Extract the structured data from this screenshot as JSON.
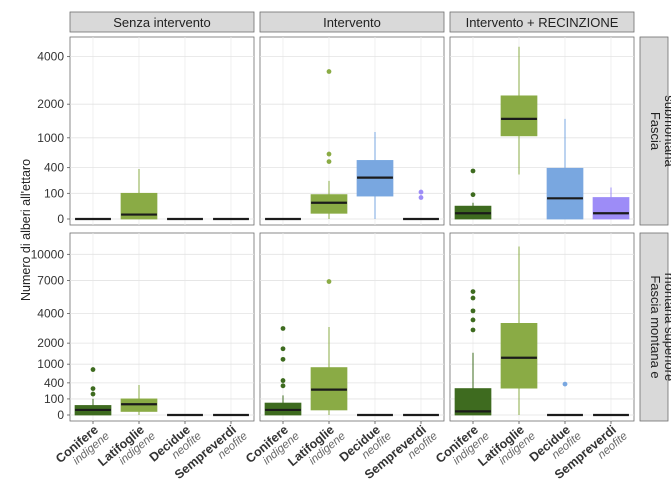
{
  "chart_data": {
    "type": "boxplot",
    "ylabel": "Numero di alberi all'ettaro",
    "columns": [
      "Senza intervento",
      "Intervento",
      "Intervento + RECINZIONE"
    ],
    "rows": [
      {
        "label": "Fascia submontana",
        "label_lines": [
          "Fascia",
          "submontana"
        ]
      },
      {
        "label": "Fascia montana e montana superiore",
        "label_lines": [
          "Fascia montana e",
          "montana superiore"
        ]
      }
    ],
    "categories": [
      {
        "main": "Conifere",
        "sub": "indigene",
        "color": "#3e6b1f"
      },
      {
        "main": "Latifoglie",
        "sub": "indigene",
        "color": "#8aab45"
      },
      {
        "main": "Decidue",
        "sub": "neofite",
        "color": "#79a7e0"
      },
      {
        "main": "Sempreverdi",
        "sub": "neofite",
        "color": "#9d8cf7"
      }
    ],
    "y_scale": "sqrt",
    "y_ticks": [
      [
        0,
        100,
        400,
        1000,
        2000,
        4000
      ],
      [
        0,
        100,
        400,
        1000,
        2000,
        4000,
        7000,
        10000
      ]
    ],
    "y_limits": [
      [
        0,
        4700
      ],
      [
        0,
        12000
      ]
    ],
    "panels": [
      {
        "row": 0,
        "col": 0,
        "boxes": [
          {
            "q1": 0,
            "median": 0,
            "q3": 0,
            "whisker_low": 0,
            "whisker_high": 0,
            "outliers": []
          },
          {
            "q1": 0,
            "median": 3,
            "q3": 100,
            "whisker_low": 0,
            "whisker_high": 380,
            "outliers": []
          },
          {
            "q1": 0,
            "median": 0,
            "q3": 0,
            "whisker_low": 0,
            "whisker_high": 0,
            "outliers": []
          },
          {
            "q1": 0,
            "median": 0,
            "q3": 0,
            "whisker_low": 0,
            "whisker_high": 0,
            "outliers": []
          }
        ]
      },
      {
        "row": 0,
        "col": 1,
        "boxes": [
          {
            "q1": 0,
            "median": 0,
            "q3": 0,
            "whisker_low": 0,
            "whisker_high": 0,
            "outliers": []
          },
          {
            "q1": 5,
            "median": 40,
            "q3": 90,
            "whisker_low": 0,
            "whisker_high": 220,
            "outliers": [
              500,
              640,
              3300
            ]
          },
          {
            "q1": 80,
            "median": 260,
            "q3": 520,
            "whisker_low": 0,
            "whisker_high": 1150,
            "outliers": []
          },
          {
            "q1": 0,
            "median": 0,
            "q3": 0,
            "whisker_low": 0,
            "whisker_high": 0,
            "outliers": [
              70,
              110
            ]
          }
        ]
      },
      {
        "row": 0,
        "col": 2,
        "boxes": [
          {
            "q1": 0,
            "median": 5,
            "q3": 25,
            "whisker_low": 0,
            "whisker_high": 40,
            "outliers": [
              90,
              350
            ]
          },
          {
            "q1": 1050,
            "median": 1520,
            "q3": 2300,
            "whisker_low": 300,
            "whisker_high": 4500,
            "outliers": []
          },
          {
            "q1": 0,
            "median": 65,
            "q3": 390,
            "whisker_low": 0,
            "whisker_high": 1520,
            "outliers": []
          },
          {
            "q1": 0,
            "median": 5,
            "q3": 70,
            "whisker_low": 0,
            "whisker_high": 150,
            "outliers": []
          }
        ]
      },
      {
        "row": 1,
        "col": 0,
        "boxes": [
          {
            "q1": 0,
            "median": 10,
            "q3": 35,
            "whisker_low": 0,
            "whisker_high": 100,
            "outliers": [
              170,
              270,
              800
            ]
          },
          {
            "q1": 5,
            "median": 45,
            "q3": 100,
            "whisker_low": 0,
            "whisker_high": 350,
            "outliers": []
          },
          {
            "q1": 0,
            "median": 0,
            "q3": 0,
            "whisker_low": 0,
            "whisker_high": 0,
            "outliers": []
          },
          {
            "q1": 0,
            "median": 0,
            "q3": 0,
            "whisker_low": 0,
            "whisker_high": 0,
            "outliers": []
          }
        ]
      },
      {
        "row": 1,
        "col": 1,
        "boxes": [
          {
            "q1": 0,
            "median": 10,
            "q3": 55,
            "whisker_low": 0,
            "whisker_high": 150,
            "outliers": [
              330,
              460,
              1200,
              1700,
              2900
            ]
          },
          {
            "q1": 10,
            "median": 250,
            "q3": 870,
            "whisker_low": 0,
            "whisker_high": 3000,
            "outliers": [
              6900
            ]
          },
          {
            "q1": 0,
            "median": 0,
            "q3": 0,
            "whisker_low": 0,
            "whisker_high": 0,
            "outliers": []
          },
          {
            "q1": 0,
            "median": 0,
            "q3": 0,
            "whisker_low": 0,
            "whisker_high": 0,
            "outliers": []
          }
        ]
      },
      {
        "row": 1,
        "col": 2,
        "boxes": [
          {
            "q1": 0,
            "median": 5,
            "q3": 270,
            "whisker_low": 0,
            "whisker_high": 1500,
            "outliers": [
              2800,
              3500,
              4200,
              5300,
              5900
            ]
          },
          {
            "q1": 280,
            "median": 1270,
            "q3": 3250,
            "whisker_low": 0,
            "whisker_high": 11000,
            "outliers": []
          },
          {
            "q1": 0,
            "median": 0,
            "q3": 0,
            "whisker_low": 0,
            "whisker_high": 0,
            "outliers": [
              370
            ]
          },
          {
            "q1": 0,
            "median": 0,
            "q3": 0,
            "whisker_low": 0,
            "whisker_high": 0,
            "outliers": []
          }
        ]
      }
    ]
  }
}
